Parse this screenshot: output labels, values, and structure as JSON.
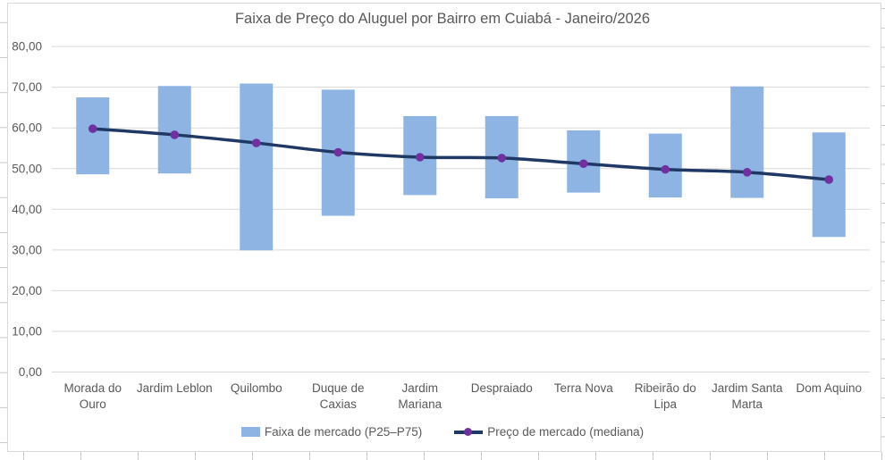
{
  "colors": {
    "bar_fill": "#8EB4E3",
    "median_line": "#1F3864",
    "median_marker": "#7030A0",
    "gridline": "#D9D9D9",
    "axis_text": "#595959",
    "title_text": "#595959",
    "chart_border": "#D9D9D9"
  },
  "y_axis": {
    "tick_labels_top_to_bottom": [
      "80,00",
      "70,00",
      "60,00",
      "50,00",
      "40,00",
      "30,00",
      "20,00",
      "10,00",
      "0,00"
    ],
    "max": 80,
    "min": 0,
    "step": 10
  },
  "chart_data": {
    "type": "bar",
    "subtype": "floating-range-bars-with-median-line",
    "title": "Faixa de Preço do Aluguel por Bairro em Cuiabá - Janeiro/2026",
    "categories": [
      "Morada do Ouro",
      "Jardim Leblon",
      "Quilombo",
      "Duque de Caxias",
      "Jardim Mariana",
      "Despraiado",
      "Terra Nova",
      "Ribeirão do Lipa",
      "Jardim Santa Marta",
      "Dom Aquino"
    ],
    "series": [
      {
        "name": "Faixa de mercado (P25–P75)",
        "type": "range-bar",
        "p25": [
          48.6,
          48.8,
          29.9,
          38.4,
          43.5,
          42.7,
          44.1,
          42.9,
          42.8,
          33.2
        ],
        "p75": [
          67.5,
          70.3,
          70.9,
          69.4,
          62.9,
          62.9,
          59.4,
          58.6,
          70.2,
          58.9
        ]
      },
      {
        "name": "Preço de mercado (mediana)",
        "type": "line",
        "values": [
          59.8,
          58.3,
          56.3,
          54.0,
          52.8,
          52.6,
          51.2,
          49.8,
          49.1,
          47.3
        ]
      }
    ],
    "ylim": [
      0,
      80
    ],
    "grid": true,
    "legend_position": "bottom",
    "number_format": "decimal-comma"
  }
}
